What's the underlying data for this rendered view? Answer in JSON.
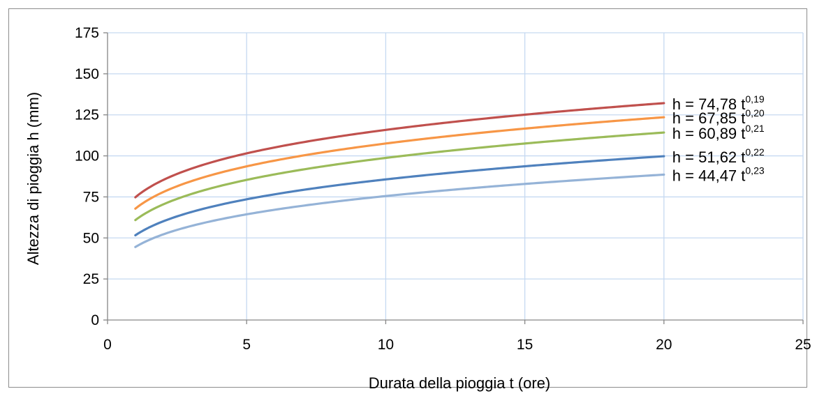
{
  "chart_data": {
    "type": "line",
    "title": "",
    "xlabel": "Durata della pioggia t (ore)",
    "ylabel": "Altezza di pioggia h (mm)",
    "xlim": [
      0,
      25
    ],
    "ylim": [
      0,
      175
    ],
    "xticks": [
      0,
      5,
      10,
      15,
      20,
      25
    ],
    "yticks": [
      0,
      25,
      50,
      75,
      100,
      125,
      150,
      175
    ],
    "grid": true,
    "legend": "none",
    "x_range": [
      1,
      20
    ],
    "series": [
      {
        "coef": 74.78,
        "exp": 0.19,
        "color": "#c0504d",
        "eq_base": "h = 74,78 t",
        "eq_exp": "0,19",
        "points": [
          [
            1,
            74.78
          ],
          [
            5,
            101.9
          ],
          [
            10,
            116.7
          ],
          [
            15,
            125.9
          ],
          [
            20,
            133.4
          ]
        ]
      },
      {
        "coef": 67.85,
        "exp": 0.2,
        "color": "#f79646",
        "eq_base": "h = 67,85 t",
        "eq_exp": "0,20",
        "points": [
          [
            1,
            67.85
          ],
          [
            5,
            93.5
          ],
          [
            10,
            107.5
          ],
          [
            15,
            116.2
          ],
          [
            20,
            123.4
          ]
        ]
      },
      {
        "coef": 60.89,
        "exp": 0.21,
        "color": "#9bbb59",
        "eq_base": "h = 60,89 t",
        "eq_exp": "0,21",
        "points": [
          [
            1,
            60.89
          ],
          [
            5,
            85.0
          ],
          [
            10,
            98.5
          ],
          [
            15,
            107.0
          ],
          [
            20,
            113.2
          ]
        ]
      },
      {
        "coef": 51.62,
        "exp": 0.22,
        "color": "#4f81bd",
        "eq_base": "h = 51,62 t",
        "eq_exp": "0,22",
        "points": [
          [
            1,
            51.62
          ],
          [
            5,
            73.3
          ],
          [
            10,
            85.6
          ],
          [
            15,
            93.6
          ],
          [
            20,
            99.7
          ]
        ]
      },
      {
        "coef": 44.47,
        "exp": 0.23,
        "color": "#95b3d7",
        "eq_base": "h = 44,47 t",
        "eq_exp": "0,23",
        "points": [
          [
            1,
            44.47
          ],
          [
            5,
            64.3
          ],
          [
            10,
            75.6
          ],
          [
            15,
            83.0
          ],
          [
            20,
            89.3
          ]
        ]
      }
    ]
  }
}
